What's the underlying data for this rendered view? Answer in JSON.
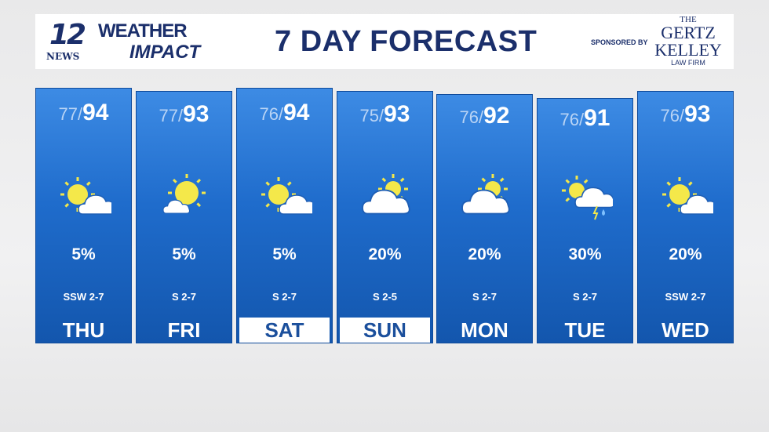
{
  "header": {
    "logo": {
      "number": "12",
      "station": "NEWS",
      "line1": "WEATHER",
      "line2": "IMPACT"
    },
    "title": "7 DAY FORECAST",
    "sponsored_by": "SPONSORED BY",
    "sponsor": {
      "the": "THE",
      "line1": "GERTZ",
      "line2": "KELLEY",
      "line3": "LAW FIRM"
    }
  },
  "days": [
    {
      "day": "THU",
      "low": "77",
      "high": "94",
      "precip": "5%",
      "wind": "SSW 2-7",
      "icon": "partly-cloudy-icon",
      "selected": false
    },
    {
      "day": "FRI",
      "low": "77",
      "high": "93",
      "precip": "5%",
      "wind": "S 2-7",
      "icon": "mostly-sunny-icon",
      "selected": false
    },
    {
      "day": "SAT",
      "low": "76",
      "high": "94",
      "precip": "5%",
      "wind": "S 2-7",
      "icon": "partly-cloudy-icon",
      "selected": true
    },
    {
      "day": "SUN",
      "low": "75",
      "high": "93",
      "precip": "20%",
      "wind": "S 2-5",
      "icon": "mostly-cloudy-icon",
      "selected": true
    },
    {
      "day": "MON",
      "low": "76",
      "high": "92",
      "precip": "20%",
      "wind": "S 2-7",
      "icon": "mostly-cloudy-icon",
      "selected": false
    },
    {
      "day": "TUE",
      "low": "76",
      "high": "91",
      "precip": "30%",
      "wind": "S 2-7",
      "icon": "storm-icon",
      "selected": false
    },
    {
      "day": "WED",
      "low": "76",
      "high": "93",
      "precip": "20%",
      "wind": "SSW 2-7",
      "icon": "partly-cloudy-icon",
      "selected": false
    }
  ],
  "colors": {
    "navy": "#1b2f6b",
    "column_top": "#3d8be4",
    "column_bottom": "#1356ad",
    "sun": "#f4e84a"
  }
}
